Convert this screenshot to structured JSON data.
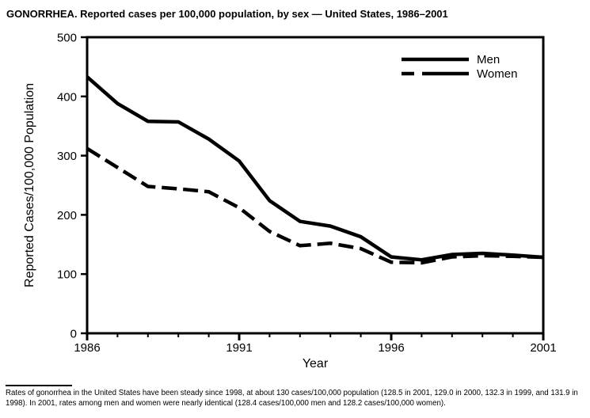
{
  "title": "GONORRHEA. Reported cases per 100,000 population, by sex — United States, 1986–2001",
  "chart_data": {
    "type": "line",
    "x": [
      1986,
      1987,
      1988,
      1989,
      1990,
      1991,
      1992,
      1993,
      1994,
      1995,
      1996,
      1997,
      1998,
      1999,
      2000,
      2001
    ],
    "series": [
      {
        "name": "Men",
        "line_style": "solid",
        "color": "#000000",
        "values": [
          433,
          388,
          358,
          357,
          328,
          291,
          224,
          189,
          181,
          163,
          129,
          124,
          133,
          135,
          132,
          128.4
        ]
      },
      {
        "name": "Women",
        "line_style": "dashed",
        "color": "#000000",
        "values": [
          312,
          280,
          248,
          244,
          239,
          212,
          172,
          148,
          152,
          143,
          120,
          119,
          129,
          131,
          130,
          128.2
        ]
      }
    ],
    "xlabel": "Year",
    "ylabel": "Reported Cases/100,000 Population",
    "xlim": [
      1986,
      2001
    ],
    "ylim": [
      0,
      500
    ],
    "yticks": [
      0,
      100,
      200,
      300,
      400,
      500
    ],
    "xticks_major": [
      1986,
      1991,
      1996,
      2001
    ],
    "xticks_minor_step": 1,
    "grid": false,
    "legend_position": "top-right",
    "line_color": "#000000"
  },
  "footnote": {
    "text": "Rates of gonorrhea in the United States have been steady since 1998, at about 130 cases/100,000 population (128.5 in 2001, 129.0 in 2000, 132.3 in 1999, and 131.9 in 1998). In 2001, rates among men and women were nearly identical (128.4 cases/100,000 men and 128.2 cases/100,000 women)."
  }
}
